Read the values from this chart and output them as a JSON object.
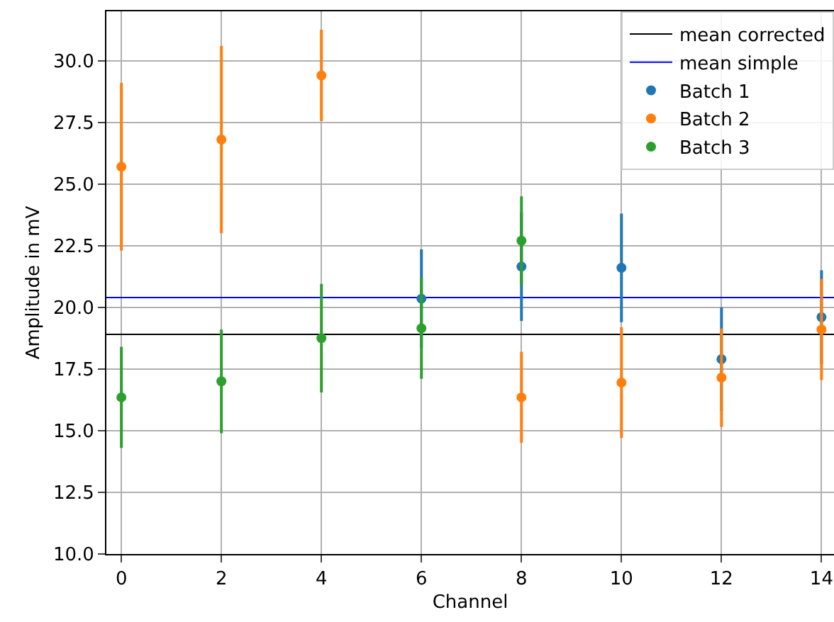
{
  "chart_data": {
    "type": "scatter",
    "xlabel": "Channel",
    "ylabel": "Amplitude in mV",
    "xlim": [
      -0.3,
      14.25
    ],
    "xticks": [
      0,
      2,
      4,
      6,
      8,
      10,
      12,
      14
    ],
    "ylim": [
      10,
      32
    ],
    "yticks": [
      {
        "value": 10,
        "label": "10.0"
      },
      {
        "value": 12.5,
        "label": "12.5"
      },
      {
        "value": 15,
        "label": "15.0"
      },
      {
        "value": 17.5,
        "label": "17.5"
      },
      {
        "value": 20,
        "label": "20.0"
      },
      {
        "value": 22.5,
        "label": "22.5"
      },
      {
        "value": 25,
        "label": "25.0"
      },
      {
        "value": 27.5,
        "label": "27.5"
      },
      {
        "value": 30,
        "label": "30.0"
      }
    ],
    "grid": true,
    "legend": "top right",
    "marker": "circle",
    "ref_lines": [
      {
        "axis": "y",
        "value": 18.9,
        "label": "mean corrected",
        "color": "#000000"
      },
      {
        "axis": "y",
        "value": 20.4,
        "label": "mean simple",
        "color": "#0000ff"
      }
    ],
    "series": [
      {
        "name": "Batch 1",
        "color": "#1f77b4",
        "x": [
          6,
          8,
          10,
          12,
          14
        ],
        "values": [
          20.35,
          21.65,
          21.6,
          17.9,
          19.6
        ],
        "errors": [
          2.0,
          2.2,
          2.2,
          2.1,
          1.9
        ]
      },
      {
        "name": "Batch 2",
        "color": "#ff7f0e",
        "x": [
          0,
          2,
          4,
          8,
          10,
          12,
          14
        ],
        "values": [
          25.7,
          26.8,
          29.4,
          16.35,
          16.95,
          17.15,
          19.1
        ],
        "errors": [
          3.4,
          3.8,
          1.85,
          1.85,
          2.25,
          2.0,
          2.05
        ]
      },
      {
        "name": "Batch 3",
        "color": "#2ca02c",
        "x": [
          0,
          2,
          4,
          6,
          8
        ],
        "values": [
          16.35,
          17.0,
          18.75,
          19.15,
          22.7
        ],
        "errors": [
          2.05,
          2.1,
          2.2,
          2.05,
          1.8
        ]
      }
    ]
  }
}
